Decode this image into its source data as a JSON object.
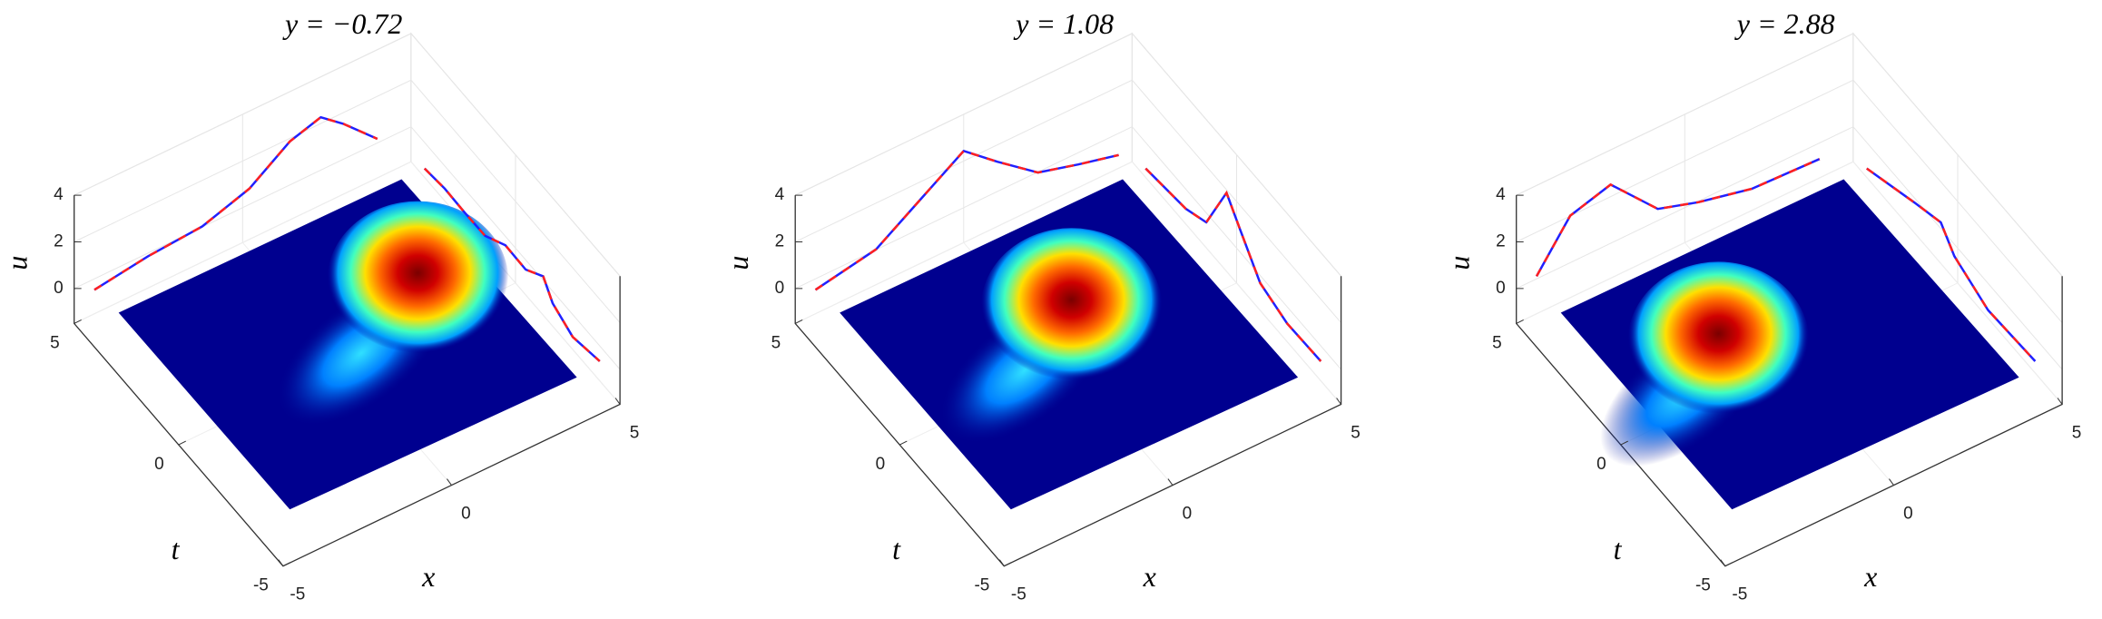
{
  "chart_data": [
    {
      "type": "surface3d",
      "title": "y = −0.72",
      "xlabel": "x",
      "ylabel": "t",
      "zlabel": "u",
      "xlim": [
        -5,
        5
      ],
      "ylim": [
        -5,
        5
      ],
      "zlim": [
        -1.5,
        4
      ],
      "xticks": [
        -5,
        0,
        5
      ],
      "yticks": [
        -5,
        0,
        5
      ],
      "zticks": [
        0,
        2,
        4
      ],
      "grid": true,
      "colormap": "jet"
    },
    {
      "type": "surface3d",
      "title": "y = 1.08",
      "xlabel": "x",
      "ylabel": "t",
      "zlabel": "u",
      "xlim": [
        -5,
        5
      ],
      "ylim": [
        -5,
        5
      ],
      "zlim": [
        -1.5,
        4
      ],
      "xticks": [
        -5,
        0,
        5
      ],
      "yticks": [
        -5,
        0,
        5
      ],
      "zticks": [
        0,
        2,
        4
      ],
      "grid": true,
      "colormap": "jet"
    },
    {
      "type": "surface3d",
      "title": "y = 2.88",
      "xlabel": "x",
      "ylabel": "t",
      "zlabel": "u",
      "xlim": [
        -5,
        5
      ],
      "ylim": [
        -5,
        5
      ],
      "zlim": [
        -1.5,
        4
      ],
      "xticks": [
        -5,
        0,
        5
      ],
      "yticks": [
        -5,
        0,
        5
      ],
      "zticks": [
        0,
        2,
        4
      ],
      "grid": true,
      "colormap": "jet"
    }
  ]
}
